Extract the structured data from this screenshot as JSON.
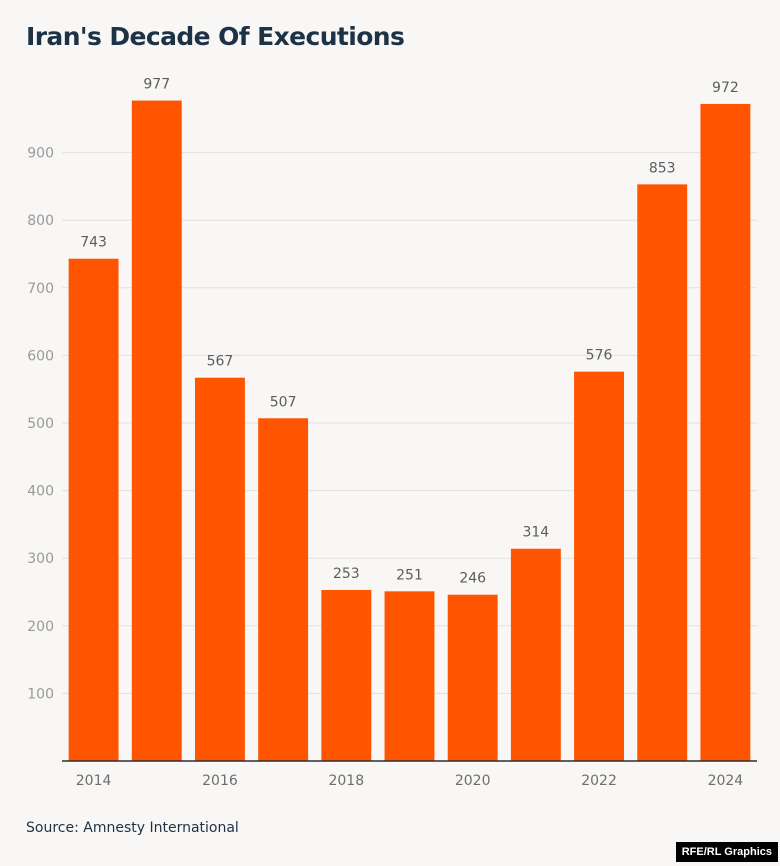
{
  "chart_data": {
    "type": "bar",
    "title": "Iran's Decade Of Executions",
    "x": [
      2014,
      2015,
      2016,
      2017,
      2018,
      2019,
      2020,
      2021,
      2022,
      2023,
      2024
    ],
    "values": [
      743,
      977,
      567,
      507,
      253,
      251,
      246,
      314,
      576,
      853,
      972
    ],
    "x_tick_labels": [
      "2014",
      "2016",
      "2018",
      "2020",
      "2022",
      "2024"
    ],
    "y_ticks": [
      100,
      200,
      300,
      400,
      500,
      600,
      700,
      800,
      900
    ],
    "ylim": [
      0,
      1000
    ],
    "grid": true,
    "bar_color": "#ff5500",
    "source": "Source: Amnesty International"
  },
  "credit": "RFE/RL Graphics"
}
